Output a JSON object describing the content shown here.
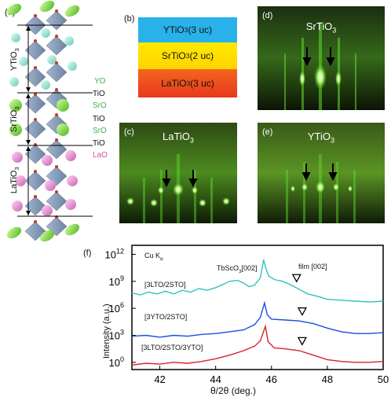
{
  "panels": {
    "a": "(a)",
    "b": "(b)",
    "c": "(c)",
    "d": "(d)",
    "e": "(e)",
    "f": "(f)"
  },
  "panel_a": {
    "region_labels": [
      "YTiO3",
      "SrTiO3",
      "LaTiO3"
    ],
    "layer_labels": [
      {
        "text": "YO",
        "color": "#3bb24a"
      },
      {
        "text": "TiO",
        "color": "#111111"
      },
      {
        "text": "SrO",
        "color": "#3bb24a"
      },
      {
        "text": "TiO",
        "color": "#111111"
      },
      {
        "text": "SrO",
        "color": "#3bb24a"
      },
      {
        "text": "TiO",
        "color": "#111111"
      },
      {
        "text": "LaO",
        "color": "#d24fb2"
      }
    ]
  },
  "panel_b": {
    "layers": [
      {
        "label": "YTiO3 (3 uc)",
        "color": "#29b2ea"
      },
      {
        "label": "SrTiO3 (2 uc)",
        "color": "#ffe800"
      },
      {
        "label": "LaTiO3 (3 uc)",
        "color": "#f0411e"
      }
    ]
  },
  "rheed": {
    "d": {
      "title": "SrTiO3"
    },
    "c": {
      "title": "LaTiO3"
    },
    "e": {
      "title": "YTiO3"
    }
  },
  "chart_data": {
    "type": "line",
    "xlabel": "θ/2θ (deg.)",
    "ylabel": "Intensity (a.u.)",
    "xlim": [
      41,
      50
    ],
    "xticks": [
      42,
      44,
      46,
      48,
      50
    ],
    "ylog": true,
    "ylim_exponent": [
      -0.8,
      13
    ],
    "ytick_labels": [
      "10^0",
      "10^3",
      "10^6",
      "10^9",
      "10^12"
    ],
    "ytick_exponents": [
      0,
      3,
      6,
      9,
      12
    ],
    "annotations": {
      "source": "Cu Kα",
      "substrate_peak": "TbScO3[002]",
      "film_peak": "film [002]"
    },
    "series": [
      {
        "name": "[3LTO/2STO]",
        "color": "#2ec4c0",
        "points": [
          [
            41,
            7.7
          ],
          [
            41.3,
            7.5
          ],
          [
            41.6,
            7.8
          ],
          [
            41.9,
            7.6
          ],
          [
            42.2,
            7.9
          ],
          [
            42.5,
            7.6
          ],
          [
            42.8,
            8.0
          ],
          [
            43.1,
            7.8
          ],
          [
            43.4,
            8.2
          ],
          [
            43.7,
            8.0
          ],
          [
            44.0,
            8.3
          ],
          [
            44.3,
            8.7
          ],
          [
            44.5,
            9.0
          ],
          [
            44.8,
            9.1
          ],
          [
            45.0,
            8.8
          ],
          [
            45.2,
            8.4
          ],
          [
            45.4,
            8.6
          ],
          [
            45.6,
            9.4
          ],
          [
            45.72,
            11.4
          ],
          [
            45.8,
            10.4
          ],
          [
            45.9,
            9.6
          ],
          [
            46.1,
            9.2
          ],
          [
            46.4,
            9.0
          ],
          [
            46.7,
            8.6
          ],
          [
            47.0,
            8.1
          ],
          [
            47.3,
            7.6
          ],
          [
            47.7,
            7.3
          ],
          [
            48.0,
            7.0
          ],
          [
            48.5,
            6.9
          ],
          [
            49.0,
            6.8
          ],
          [
            49.5,
            6.7
          ],
          [
            50,
            6.8
          ]
        ]
      },
      {
        "name": "[3YTO/2STO]",
        "color": "#1a4fe0",
        "points": [
          [
            41,
            2.9
          ],
          [
            41.5,
            3.0
          ],
          [
            42.0,
            2.8
          ],
          [
            42.5,
            3.0
          ],
          [
            43.0,
            2.9
          ],
          [
            43.5,
            3.1
          ],
          [
            44.0,
            3.2
          ],
          [
            44.5,
            3.4
          ],
          [
            45.0,
            3.6
          ],
          [
            45.4,
            4.2
          ],
          [
            45.6,
            5.0
          ],
          [
            45.75,
            6.6
          ],
          [
            45.85,
            5.3
          ],
          [
            46.0,
            4.8
          ],
          [
            46.5,
            4.7
          ],
          [
            47.0,
            4.6
          ],
          [
            47.5,
            4.3
          ],
          [
            48.0,
            3.8
          ],
          [
            48.5,
            3.4
          ],
          [
            49.0,
            3.2
          ],
          [
            49.5,
            3.2
          ],
          [
            50,
            3.3
          ]
        ]
      },
      {
        "name": "[3LTO/2STO/3YTO]",
        "color": "#d8232a",
        "points": [
          [
            41,
            -0.3
          ],
          [
            41.5,
            -0.1
          ],
          [
            42.0,
            -0.2
          ],
          [
            42.5,
            0.0
          ],
          [
            43.0,
            -0.1
          ],
          [
            43.5,
            0.1
          ],
          [
            44.0,
            0.4
          ],
          [
            44.5,
            0.8
          ],
          [
            45.0,
            1.3
          ],
          [
            45.4,
            1.8
          ],
          [
            45.6,
            2.4
          ],
          [
            45.78,
            4.0
          ],
          [
            45.88,
            2.3
          ],
          [
            46.1,
            1.6
          ],
          [
            46.5,
            1.5
          ],
          [
            47.0,
            1.3
          ],
          [
            47.5,
            0.8
          ],
          [
            48.0,
            0.3
          ],
          [
            48.5,
            0.1
          ],
          [
            49.0,
            0.0
          ],
          [
            49.5,
            0.0
          ],
          [
            50,
            0.1
          ]
        ]
      }
    ],
    "markers": [
      {
        "series": 0,
        "x": 46.9,
        "y": 9.4
      },
      {
        "series": 1,
        "x": 47.1,
        "y": 5.7
      },
      {
        "series": 2,
        "x": 47.1,
        "y": 2.4
      }
    ]
  }
}
